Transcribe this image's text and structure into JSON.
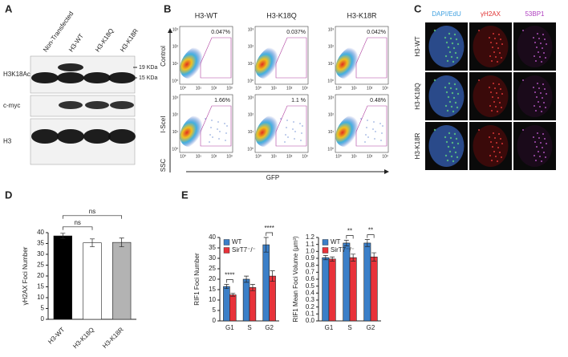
{
  "panels": {
    "A": {
      "label": "A",
      "lanes": [
        "Non-Transfected",
        "H3-WT",
        "H3-K18Q",
        "H3-K18R"
      ],
      "rows": [
        "H3K18Ac",
        "c-myc",
        "H3"
      ],
      "markers": [
        "19 KDa",
        "15 KDa"
      ]
    },
    "B": {
      "label": "B",
      "columns": [
        "H3-WT",
        "H3-K18Q",
        "H3-K18R"
      ],
      "rows": [
        "Control",
        "I-SceI"
      ],
      "percentages": [
        [
          "0.047%",
          "0.037%",
          "0.042%"
        ],
        [
          "1.66%",
          "1.1 %",
          "0.48%"
        ]
      ],
      "axis_ticks": [
        "10⁰",
        "10¹",
        "10²",
        "10³"
      ],
      "y_axis": "SSC",
      "x_axis": "GFP"
    },
    "C": {
      "label": "C",
      "columns": [
        "DAPI/EdU",
        "γH2AX",
        "53BP1"
      ],
      "rows": [
        "H3-WT",
        "H3-K18Q",
        "H3-K18R"
      ]
    }
  },
  "chart_data": [
    {
      "type": "bar",
      "panel": "D",
      "ylabel": "γH2AX Foci Number",
      "categories": [
        "H3-WT",
        "H3-K18Q",
        "H3-K18R"
      ],
      "values": [
        38.5,
        35.3,
        35.5
      ],
      "errors": [
        1.2,
        1.8,
        2.0
      ],
      "colors": [
        "#000000",
        "#ffffff",
        "#b3b3b3"
      ],
      "ylim": [
        0,
        40
      ],
      "yticks": [
        0,
        5,
        10,
        15,
        20,
        25,
        30,
        35,
        40
      ],
      "annotations": [
        {
          "text": "ns",
          "between": [
            "H3-WT",
            "H3-K18Q"
          ]
        },
        {
          "text": "ns",
          "between": [
            "H3-WT",
            "H3-K18R"
          ]
        }
      ]
    },
    {
      "type": "bar",
      "panel": "E",
      "ylabel": "RIF1 Foci Number",
      "categories": [
        "G1",
        "S",
        "G2"
      ],
      "series": [
        {
          "name": "WT",
          "color": "#3b7fc8",
          "values": [
            16.5,
            20,
            36.5
          ],
          "errors": [
            1.0,
            1.5,
            3.5
          ]
        },
        {
          "name": "SirT7⁻/⁻",
          "color": "#e8323a",
          "values": [
            12.5,
            16,
            21.5
          ],
          "errors": [
            0.7,
            1.5,
            2.5
          ]
        }
      ],
      "ylim": [
        0,
        40
      ],
      "yticks": [
        0,
        5,
        10,
        15,
        20,
        25,
        30,
        35,
        40
      ],
      "legend": "top-left",
      "annotations": [
        {
          "text": "****",
          "category": "G1"
        },
        {
          "text": "****",
          "category": "G2"
        }
      ]
    },
    {
      "type": "bar",
      "ylabel": "RIF1 Mean Foci Volume (μm³)",
      "categories": [
        "G1",
        "S",
        "G2"
      ],
      "series": [
        {
          "name": "WT",
          "color": "#3b7fc8",
          "values": [
            0.91,
            1.12,
            1.12
          ],
          "errors": [
            0.03,
            0.04,
            0.05
          ]
        },
        {
          "name": "SirT7⁻/⁻",
          "color": "#e8323a",
          "values": [
            0.89,
            0.91,
            0.92
          ],
          "errors": [
            0.03,
            0.05,
            0.06
          ]
        }
      ],
      "ylim": [
        0,
        1.2
      ],
      "yticks": [
        {
          "value": 0,
          "label": "0.0"
        },
        {
          "value": 0.1,
          "label": "0.1"
        },
        {
          "value": 0.2,
          "label": "0.2"
        },
        {
          "value": 0.3,
          "label": "0.3"
        },
        {
          "value": 0.4,
          "label": "0.4"
        },
        {
          "value": 0.5,
          "label": "0.5"
        },
        {
          "value": 0.6,
          "label": "0.6"
        },
        {
          "value": 0.7,
          "label": "0.7"
        },
        {
          "value": 0.8,
          "label": "0.8"
        },
        {
          "value": 0.9,
          "label": "0.9"
        },
        {
          "value": 1,
          "label": "1.0"
        },
        {
          "value": 1.1,
          "label": "1.1"
        },
        {
          "value": 1.2,
          "label": "1.2"
        }
      ],
      "legend": "top-left",
      "annotations": [
        {
          "text": "**",
          "category": "S"
        },
        {
          "text": "**",
          "category": "G2"
        }
      ]
    }
  ]
}
